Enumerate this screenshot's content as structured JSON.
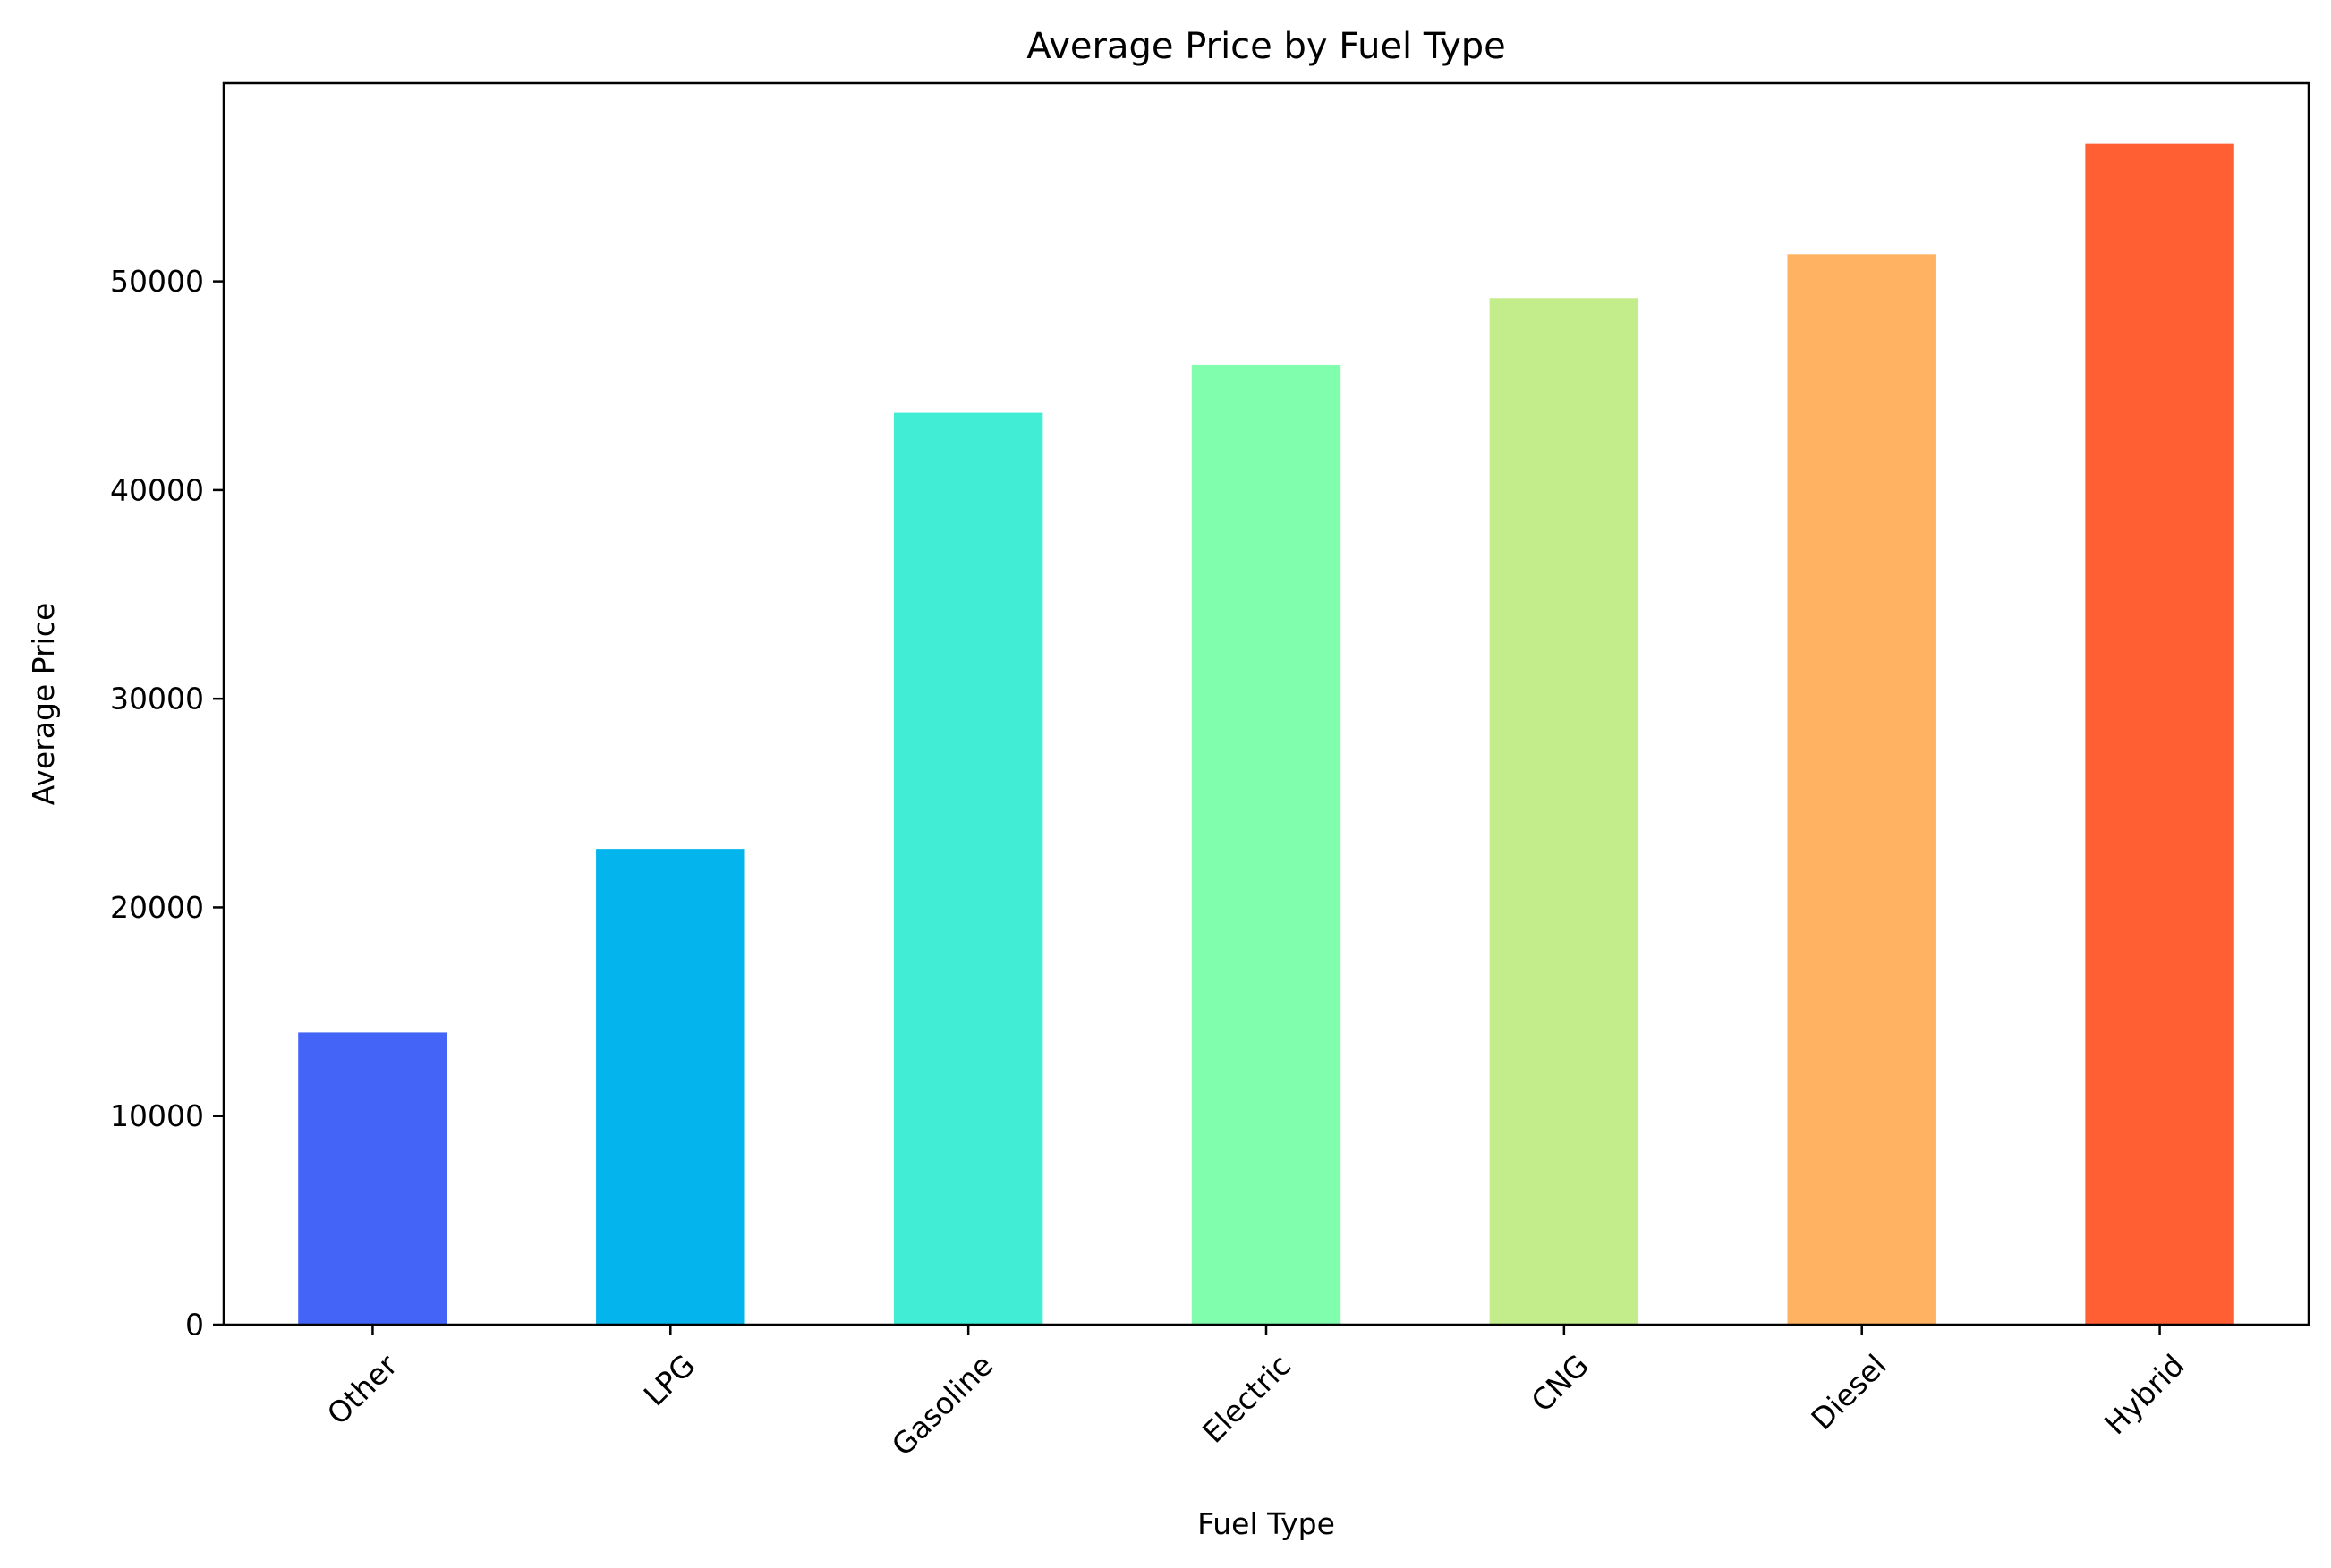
{
  "chart_data": {
    "type": "bar",
    "title": "Average Price by Fuel Type",
    "xlabel": "Fuel Type",
    "ylabel": "Average Price",
    "categories": [
      "Other",
      "LPG",
      "Gasoline",
      "Electric",
      "CNG",
      "Diesel",
      "Hybrid"
    ],
    "values": [
      14000,
      22800,
      43700,
      46000,
      49200,
      51300,
      56600
    ],
    "colors": [
      "#4364F7",
      "#04B4EC",
      "#42EDD5",
      "#80FEAE",
      "#C3EC8A",
      "#FFB262",
      "#FF5F33"
    ],
    "ylim": [
      0,
      59500
    ],
    "yticks": [
      0,
      10000,
      20000,
      30000,
      40000,
      50000
    ],
    "ytick_labels": [
      "0",
      "10000",
      "20000",
      "30000",
      "40000",
      "50000"
    ],
    "grid": false,
    "legend": "none",
    "xtick_rotation_deg": 45
  }
}
